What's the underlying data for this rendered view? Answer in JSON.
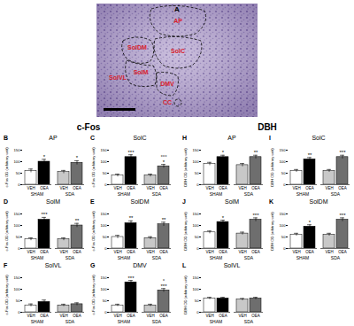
{
  "figure": {
    "panel_a": {
      "label": "A",
      "regions": [
        "AP",
        "SolC",
        "SolDM",
        "SolM",
        "SolVL",
        "DMV",
        "CC"
      ]
    },
    "groups": [
      {
        "title": "c-Fos",
        "panels": [
          "B",
          "C",
          "D",
          "E",
          "F",
          "G"
        ]
      },
      {
        "title": "DBH",
        "panels": [
          "H",
          "I",
          "J",
          "K",
          "L"
        ]
      }
    ]
  },
  "chart_data": [
    {
      "type": "bar",
      "panel": "B",
      "title": "AP",
      "ylabel": "c-Fos OD (arbitrary unit)",
      "categories": [
        "VEH",
        "OEA",
        "VEH",
        "OEA"
      ],
      "groups": [
        "SHAM",
        "SHAM",
        "SDA",
        "SDA"
      ],
      "values": [
        60,
        100,
        55,
        95
      ],
      "errors": [
        8,
        10,
        7,
        9
      ],
      "annotations": [
        null,
        "*",
        null,
        "*"
      ],
      "colors": [
        "#ffffff",
        "#000000",
        "#c8c8c8",
        "#6e6e6e"
      ],
      "ylim": [
        0,
        150
      ],
      "yticks": [
        0,
        50,
        100,
        150
      ]
    },
    {
      "type": "bar",
      "panel": "C",
      "title": "SolC",
      "ylabel": "c-Fos OD (arbitrary unit)",
      "categories": [
        "VEH",
        "OEA",
        "VEH",
        "OEA"
      ],
      "groups": [
        "SHAM",
        "SHAM",
        "SDA",
        "SDA"
      ],
      "values": [
        40,
        120,
        40,
        80
      ],
      "errors": [
        6,
        10,
        6,
        8
      ],
      "annotations": [
        null,
        "***",
        null,
        "°°°\n*"
      ],
      "colors": [
        "#ffffff",
        "#000000",
        "#c8c8c8",
        "#6e6e6e"
      ],
      "ylim": [
        0,
        150
      ],
      "yticks": [
        0,
        50,
        100,
        150
      ]
    },
    {
      "type": "bar",
      "panel": "D",
      "title": "SolM",
      "ylabel": "c-Fos OD (arbitrary unit)",
      "categories": [
        "VEH",
        "OEA",
        "VEH",
        "OEA"
      ],
      "groups": [
        "SHAM",
        "SHAM",
        "SDA",
        "SDA"
      ],
      "values": [
        40,
        125,
        40,
        100
      ],
      "errors": [
        6,
        10,
        6,
        9
      ],
      "annotations": [
        null,
        "***",
        null,
        "**"
      ],
      "colors": [
        "#ffffff",
        "#000000",
        "#c8c8c8",
        "#6e6e6e"
      ],
      "ylim": [
        0,
        150
      ],
      "yticks": [
        0,
        50,
        100,
        150
      ]
    },
    {
      "type": "bar",
      "panel": "E",
      "title": "SolDM",
      "ylabel": "c-Fos OD (arbitrary unit)",
      "categories": [
        "VEH",
        "OEA",
        "VEH",
        "OEA"
      ],
      "groups": [
        "SHAM",
        "SHAM",
        "SDA",
        "SDA"
      ],
      "values": [
        50,
        110,
        45,
        105
      ],
      "errors": [
        7,
        10,
        6,
        9
      ],
      "annotations": [
        null,
        "**",
        null,
        "**"
      ],
      "colors": [
        "#ffffff",
        "#000000",
        "#c8c8c8",
        "#6e6e6e"
      ],
      "ylim": [
        0,
        150
      ],
      "yticks": [
        0,
        50,
        100,
        150
      ]
    },
    {
      "type": "bar",
      "panel": "F",
      "title": "SolVL",
      "ylabel": "c-Fos OD (arbitrary unit)",
      "categories": [
        "VEH",
        "OEA",
        "VEH",
        "OEA"
      ],
      "groups": [
        "SHAM",
        "SHAM",
        "SDA",
        "SDA"
      ],
      "values": [
        30,
        45,
        30,
        35
      ],
      "errors": [
        6,
        8,
        5,
        6
      ],
      "annotations": [
        null,
        null,
        null,
        null
      ],
      "colors": [
        "#ffffff",
        "#000000",
        "#c8c8c8",
        "#6e6e6e"
      ],
      "ylim": [
        0,
        150
      ],
      "yticks": [
        0,
        50,
        100,
        150
      ]
    },
    {
      "type": "bar",
      "panel": "G",
      "title": "DMV",
      "ylabel": "c-Fos OD (arbitrary unit)",
      "categories": [
        "VEH",
        "OEA",
        "VEH",
        "OEA"
      ],
      "groups": [
        "SHAM",
        "SHAM",
        "SDA",
        "SDA"
      ],
      "values": [
        30,
        130,
        30,
        95
      ],
      "errors": [
        5,
        8,
        5,
        8
      ],
      "annotations": [
        null,
        "***",
        null,
        "°\n***"
      ],
      "colors": [
        "#ffffff",
        "#000000",
        "#c8c8c8",
        "#6e6e6e"
      ],
      "ylim": [
        0,
        150
      ],
      "yticks": [
        0,
        50,
        100,
        150
      ]
    },
    {
      "type": "bar",
      "panel": "H",
      "title": "AP",
      "ylabel": "DBH OD (arbitrary unit)",
      "categories": [
        "VEH",
        "OEA",
        "VEH",
        "OEA"
      ],
      "groups": [
        "SHAM",
        "SHAM",
        "SDA",
        "SDA"
      ],
      "values": [
        90,
        120,
        85,
        120
      ],
      "errors": [
        7,
        8,
        7,
        8
      ],
      "annotations": [
        null,
        "*",
        null,
        "**"
      ],
      "colors": [
        "#ffffff",
        "#000000",
        "#c8c8c8",
        "#6e6e6e"
      ],
      "ylim": [
        0,
        150
      ],
      "yticks": [
        0,
        50,
        100,
        150
      ]
    },
    {
      "type": "bar",
      "panel": "I",
      "title": "SolC",
      "ylabel": "DBH OD (arbitrary unit)",
      "categories": [
        "VEH",
        "OEA",
        "VEH",
        "OEA"
      ],
      "groups": [
        "SHAM",
        "SHAM",
        "SDA",
        "SDA"
      ],
      "values": [
        60,
        110,
        60,
        120
      ],
      "errors": [
        6,
        8,
        6,
        8
      ],
      "annotations": [
        null,
        "**",
        null,
        "***"
      ],
      "colors": [
        "#ffffff",
        "#000000",
        "#c8c8c8",
        "#6e6e6e"
      ],
      "ylim": [
        0,
        150
      ],
      "yticks": [
        0,
        50,
        100,
        150
      ]
    },
    {
      "type": "bar",
      "panel": "J",
      "title": "SolM",
      "ylabel": "DBH OD (arbitrary unit)",
      "categories": [
        "VEH",
        "OEA",
        "VEH",
        "OEA"
      ],
      "groups": [
        "SHAM",
        "SHAM",
        "SDA",
        "SDA"
      ],
      "values": [
        70,
        115,
        65,
        125
      ],
      "errors": [
        6,
        8,
        6,
        8
      ],
      "annotations": [
        null,
        "*",
        null,
        "***"
      ],
      "colors": [
        "#ffffff",
        "#000000",
        "#c8c8c8",
        "#6e6e6e"
      ],
      "ylim": [
        0,
        150
      ],
      "yticks": [
        0,
        50,
        100,
        150
      ]
    },
    {
      "type": "bar",
      "panel": "K",
      "title": "SolDM",
      "ylabel": "DBH OD (arbitrary unit)",
      "categories": [
        "VEH",
        "OEA",
        "VEH",
        "OEA"
      ],
      "groups": [
        "SHAM",
        "SHAM",
        "SDA",
        "SDA"
      ],
      "values": [
        60,
        95,
        60,
        125
      ],
      "errors": [
        6,
        8,
        6,
        8
      ],
      "annotations": [
        null,
        "*",
        null,
        "***"
      ],
      "colors": [
        "#ffffff",
        "#000000",
        "#c8c8c8",
        "#6e6e6e"
      ],
      "ylim": [
        0,
        150
      ],
      "yticks": [
        0,
        50,
        100,
        150
      ]
    },
    {
      "type": "bar",
      "panel": "L",
      "title": "SolVL",
      "ylabel": "DBH OD (arbitrary unit)",
      "categories": [
        "VEH",
        "OEA",
        "VEH",
        "OEA"
      ],
      "groups": [
        "SHAM",
        "SHAM",
        "SDA",
        "SDA"
      ],
      "values": [
        60,
        60,
        55,
        60
      ],
      "errors": [
        5,
        5,
        5,
        5
      ],
      "annotations": [
        null,
        null,
        null,
        null
      ],
      "colors": [
        "#ffffff",
        "#000000",
        "#c8c8c8",
        "#6e6e6e"
      ],
      "ylim": [
        0,
        150
      ],
      "yticks": [
        0,
        50,
        100,
        150
      ]
    }
  ]
}
